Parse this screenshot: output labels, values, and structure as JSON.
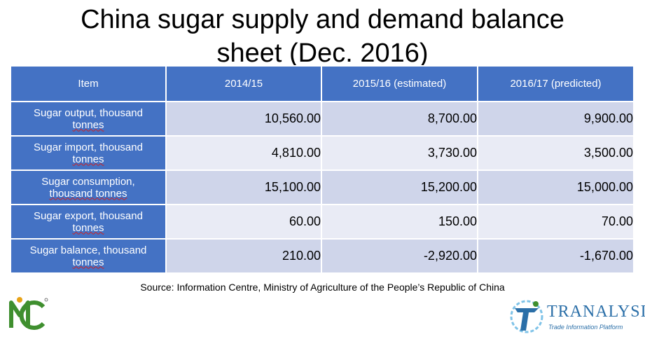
{
  "title": {
    "line1": "China sugar supply and demand balance",
    "line2": "sheet (Dec. 2016)"
  },
  "table": {
    "headers": [
      "Item",
      "2014/15",
      "2015/16 (estimated)",
      "2016/17 (predicted)"
    ],
    "rows": [
      {
        "item_a": "Sugar output, thousand",
        "item_b": "tonnes",
        "values": [
          "10,560.00",
          "8,700.00",
          "9,900.00"
        ]
      },
      {
        "item_a": "Sugar import, thousand",
        "item_b": "tonnes",
        "values": [
          "4,810.00",
          "3,730.00",
          "3,500.00"
        ]
      },
      {
        "item_a": "Sugar consumption,",
        "item_b": "thousand tonnes",
        "values": [
          "15,100.00",
          "15,200.00",
          "15,000.00"
        ]
      },
      {
        "item_a": "Sugar export, thousand",
        "item_b": "tonnes",
        "values": [
          "60.00",
          "150.00",
          "70.00"
        ]
      },
      {
        "item_a": "Sugar balance, thousand",
        "item_b": "tonnes",
        "values": [
          "210.00",
          "-2,920.00",
          "-1,670.00"
        ]
      }
    ]
  },
  "source": "Source: Information Centre, Ministry of Agriculture of the People’s Republic of China",
  "logos": {
    "left_icon": "mc-logo-icon",
    "right_icon": "tranalysis-logo-icon",
    "right_name": "TRANALYSIS",
    "right_tagline": "Trade Information Platform"
  },
  "colors": {
    "header_blue": "#4472c4",
    "row_dark": "#cfd5ea",
    "row_light": "#e9ebf5",
    "logo_blue": "#2b6fa8",
    "logo_green": "#3f8f2f"
  }
}
